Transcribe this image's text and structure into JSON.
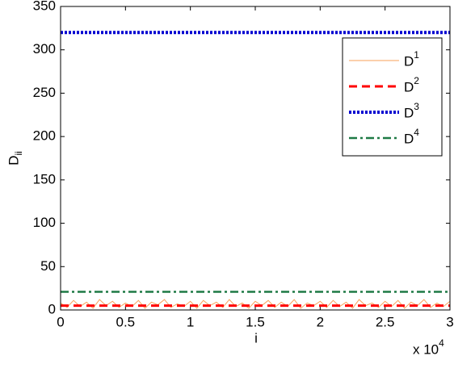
{
  "chart_data": {
    "type": "line",
    "ylabel": "Dii",
    "xlabel": "i",
    "x_multiplier": "x 104",
    "xlim": [
      0,
      30000
    ],
    "ylim": [
      0,
      350
    ],
    "xticks": [
      {
        "value": 0,
        "label": "0"
      },
      {
        "value": 5000,
        "label": "0.5"
      },
      {
        "value": 10000,
        "label": "1"
      },
      {
        "value": 15000,
        "label": "1.5"
      },
      {
        "value": 20000,
        "label": "2"
      },
      {
        "value": 25000,
        "label": "2.5"
      },
      {
        "value": 30000,
        "label": "3"
      }
    ],
    "yticks": [
      0,
      50,
      100,
      150,
      200,
      250,
      300,
      350
    ],
    "grid": false,
    "legend": "upper right",
    "series": [
      {
        "name": "D1",
        "color": "#f7a15a",
        "dash": "solid",
        "x": [
          0,
          500,
          1000,
          1500,
          2000,
          2500,
          3000,
          3500,
          4000,
          4500,
          5000,
          5500,
          6000,
          6500,
          7000,
          7500,
          8000,
          8500,
          9000,
          9500,
          10000,
          10500,
          11000,
          11500,
          12000,
          12500,
          13000,
          13500,
          14000,
          14500,
          15000,
          15500,
          16000,
          16500,
          17000,
          17500,
          18000,
          18500,
          19000,
          19500,
          20000,
          20500,
          21000,
          21500,
          22000,
          22500,
          23000,
          23500,
          24000,
          24500,
          25000,
          25500,
          26000,
          26500,
          27000,
          27500,
          28000,
          28500,
          29000,
          29500,
          30000
        ],
        "values": [
          8,
          3,
          11,
          4,
          9,
          2,
          12,
          5,
          10,
          3,
          8,
          4,
          11,
          2,
          9,
          6,
          12,
          3,
          7,
          4,
          10,
          2,
          11,
          5,
          9,
          3,
          12,
          4,
          8,
          2,
          10,
          5,
          11,
          3,
          9,
          4,
          12,
          2,
          8,
          5,
          10,
          3,
          11,
          4,
          9,
          2,
          12,
          5,
          8,
          3,
          10,
          4,
          11,
          2,
          9,
          5,
          12,
          3,
          8,
          4,
          10
        ]
      },
      {
        "name": "D2",
        "color": "#ff0000",
        "dash": "dashed",
        "x": [
          0,
          30000
        ],
        "values": [
          5,
          5
        ]
      },
      {
        "name": "D3",
        "color": "#0000d0",
        "dash": "dotted",
        "x": [
          0,
          30000
        ],
        "values": [
          320,
          320
        ]
      },
      {
        "name": "D4",
        "color": "#1e7a45",
        "dash": "dashdot",
        "x": [
          0,
          30000
        ],
        "values": [
          21,
          21
        ]
      }
    ]
  }
}
